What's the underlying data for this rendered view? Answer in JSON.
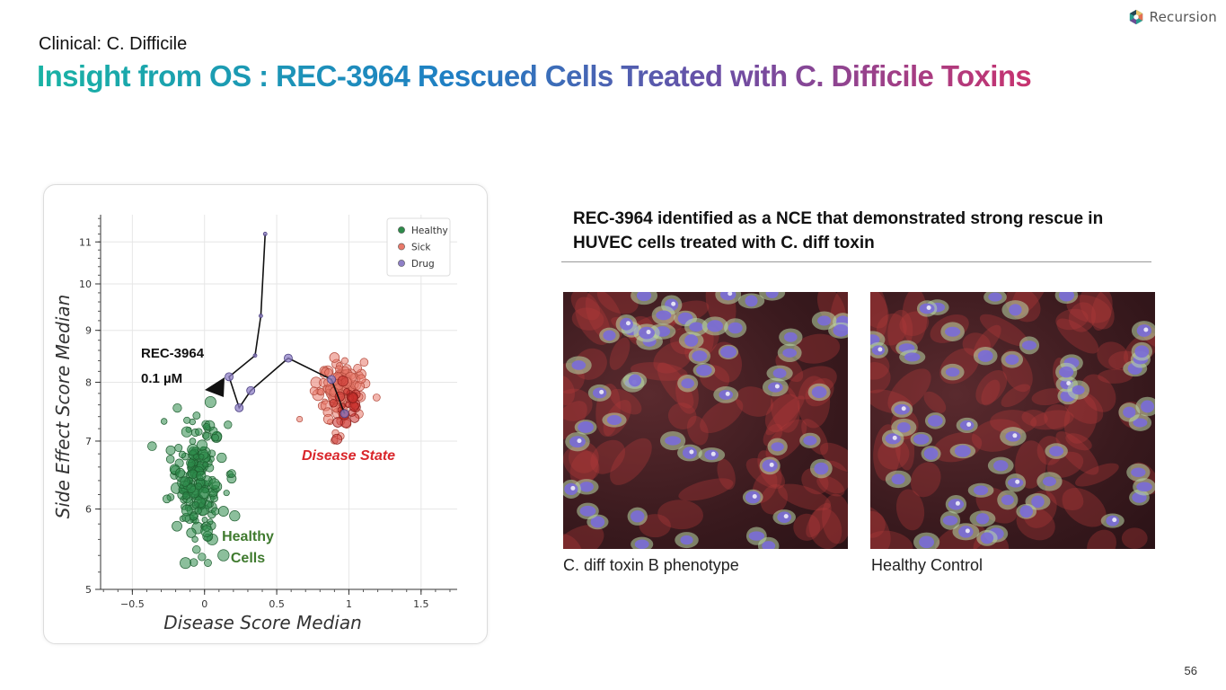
{
  "brand": {
    "name": "Recursion",
    "logo_icon": "hexagon-logo-icon"
  },
  "header": {
    "kicker": "Clinical: C. Difficile",
    "headline": "Insight from OS : REC-3964 Rescued Cells Treated with C. Difficile Toxins"
  },
  "chart_data": {
    "type": "scatter",
    "xlabel": "Disease Score Median",
    "ylabel": "Side Effect Score Median",
    "xlim": [
      -0.72,
      1.75
    ],
    "ylim": [
      5,
      11.7
    ],
    "yscale": "log",
    "xticks": [
      -0.5,
      0,
      0.5,
      1,
      1.5
    ],
    "xtick_labels": [
      "−0.5",
      "0",
      "0.5",
      "1",
      "1.5"
    ],
    "yticks": [
      5,
      6,
      7,
      8,
      9,
      10,
      11
    ],
    "grid": true,
    "legend": {
      "placement": "top-right",
      "entries": [
        "Healthy",
        "Sick",
        "Drug"
      ]
    },
    "colors": {
      "Healthy": "#2e8b4a",
      "Sick": "#e8796a",
      "Drug": "#8e7fc6"
    },
    "series": [
      {
        "name": "Healthy",
        "cluster_center": [
          -0.05,
          6.4
        ],
        "cluster_spread": [
          0.09,
          0.45
        ],
        "count": 180
      },
      {
        "name": "Sick",
        "cluster_center": [
          0.93,
          7.85
        ],
        "cluster_spread": [
          0.08,
          0.32
        ],
        "count": 120
      },
      {
        "name": "Drug",
        "x": [
          0.42,
          0.39,
          0.35,
          0.17,
          0.24,
          0.32,
          0.58,
          0.88,
          0.97
        ],
        "y": [
          11.2,
          9.3,
          8.5,
          8.1,
          7.55,
          7.85,
          8.45,
          8.05,
          7.45
        ]
      }
    ],
    "annotations": [
      {
        "text": "REC-3964",
        "color": "#111111"
      },
      {
        "text": "0.1 µM",
        "color": "#111111"
      },
      {
        "text": "Disease State",
        "color": "#d9262b"
      },
      {
        "text": "Healthy",
        "color": "#3f7a2e"
      },
      {
        "text": "Cells",
        "color": "#3f7a2e"
      }
    ]
  },
  "findings": "REC-3964 identified as a NCE that demonstrated strong rescue in HUVEC cells treated with C. diff toxin",
  "images": [
    {
      "caption": "C. diff toxin B phenotype",
      "icon": "microscopy-image-icon"
    },
    {
      "caption": "Healthy Control",
      "icon": "microscopy-image-icon"
    }
  ],
  "page_number": "56"
}
